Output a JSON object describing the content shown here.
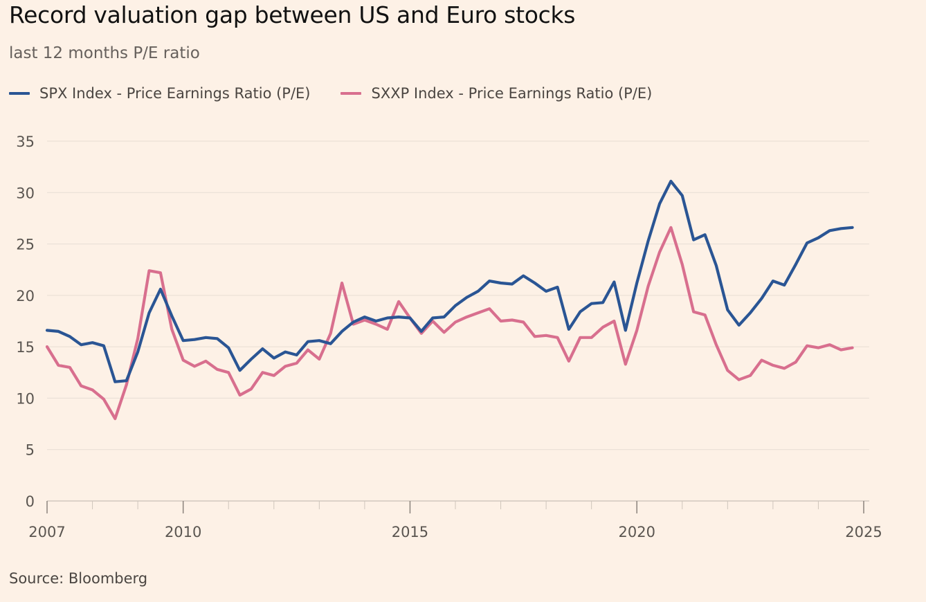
{
  "title": "Record valuation gap between US and Euro stocks",
  "subtitle": "last 12 months P/E ratio",
  "source": "Source: Bloomberg",
  "colors": {
    "background": "#fdf1e6",
    "spx": "#2a5594",
    "sxxp": "#d86f8e",
    "grid": "#e7ddd3"
  },
  "chart_data": {
    "type": "line",
    "title": "Record valuation gap between US and Euro stocks",
    "subtitle": "last 12 months P/E ratio",
    "xlabel": "",
    "ylabel": "",
    "xlim": [
      2007,
      2025
    ],
    "ylim": [
      0,
      35
    ],
    "yticks": [
      0,
      5,
      10,
      15,
      20,
      25,
      30,
      35
    ],
    "xtick_labels": [
      "2007",
      "2010",
      "2015",
      "2020",
      "2025"
    ],
    "xtick_values": [
      2007,
      2010,
      2015,
      2020,
      2025
    ],
    "grid": true,
    "legend_position": "top-left",
    "x_step_years": 0.25,
    "series": [
      {
        "name": "SPX Index - Price Earnings Ratio (P/E)",
        "color": "#2a5594",
        "values": [
          16.6,
          16.5,
          16.0,
          15.2,
          15.4,
          15.1,
          11.6,
          11.7,
          14.5,
          18.3,
          20.6,
          18.0,
          15.6,
          15.7,
          15.9,
          15.8,
          14.9,
          12.7,
          13.8,
          14.8,
          13.9,
          14.5,
          14.2,
          15.5,
          15.6,
          15.3,
          16.5,
          17.4,
          17.9,
          17.5,
          17.8,
          17.9,
          17.8,
          16.5,
          17.8,
          17.9,
          19.0,
          19.8,
          20.4,
          21.4,
          21.2,
          21.1,
          21.9,
          21.2,
          20.4,
          20.8,
          16.7,
          18.4,
          19.2,
          19.3,
          21.3,
          16.6,
          21.2,
          25.3,
          28.9,
          31.1,
          29.7,
          25.4,
          25.9,
          22.9,
          18.6,
          17.1,
          18.3,
          19.7,
          21.4,
          21.0,
          23.0,
          25.1,
          25.6,
          26.3,
          26.5,
          26.6
        ]
      },
      {
        "name": "SXXP Index - Price Earnings Ratio (P/E)",
        "color": "#d86f8e",
        "values": [
          15.0,
          13.2,
          13.0,
          11.2,
          10.8,
          9.9,
          8.0,
          11.3,
          15.8,
          22.4,
          22.2,
          16.7,
          13.7,
          13.1,
          13.6,
          12.8,
          12.5,
          10.3,
          10.9,
          12.5,
          12.2,
          13.1,
          13.4,
          14.7,
          13.8,
          16.3,
          21.2,
          17.2,
          17.6,
          17.2,
          16.7,
          19.4,
          17.8,
          16.3,
          17.5,
          16.4,
          17.4,
          17.9,
          18.3,
          18.7,
          17.5,
          17.6,
          17.4,
          16.0,
          16.1,
          15.9,
          13.6,
          15.9,
          15.9,
          16.9,
          17.5,
          13.3,
          16.6,
          20.9,
          24.2,
          26.6,
          23.0,
          18.4,
          18.1,
          15.2,
          12.7,
          11.8,
          12.2,
          13.7,
          13.2,
          12.9,
          13.5,
          15.1,
          14.9,
          15.2,
          14.7,
          14.9
        ]
      }
    ]
  }
}
